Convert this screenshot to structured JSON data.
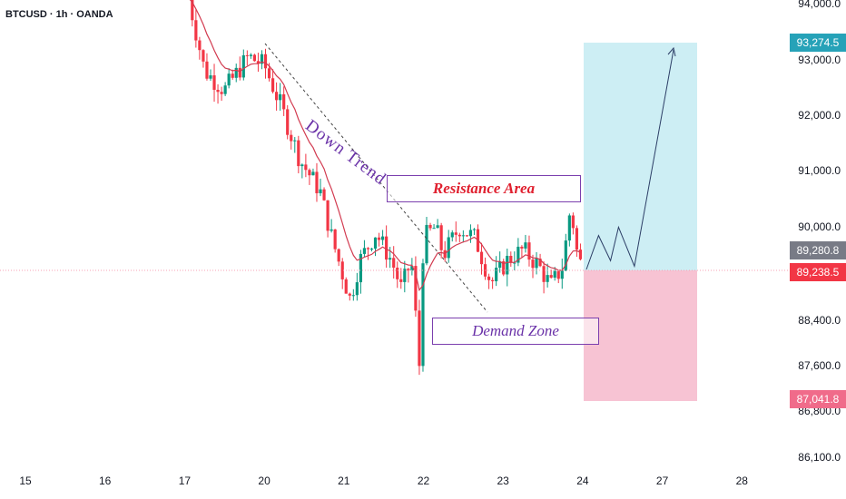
{
  "header": {
    "symbol": "BTCUSD · 1h · OANDA"
  },
  "y_axis": {
    "ticks": [
      {
        "label": "94,000.0",
        "value": 94000
      },
      {
        "label": "93,000.0",
        "value": 93000
      },
      {
        "label": "92,000.0",
        "value": 92000
      },
      {
        "label": "91,000.0",
        "value": 91000
      },
      {
        "label": "90,000.0",
        "value": 90000
      },
      {
        "label": "88,400.0",
        "value": 88400
      },
      {
        "label": "87,600.0",
        "value": 87600
      },
      {
        "label": "86,800.0",
        "value": 86800
      },
      {
        "label": "86,100.0",
        "value": 86100
      }
    ]
  },
  "x_axis": {
    "ticks": [
      {
        "label": "15",
        "t": 0
      },
      {
        "label": "16",
        "t": 1
      },
      {
        "label": "17",
        "t": 2
      },
      {
        "label": "20",
        "t": 3
      },
      {
        "label": "21",
        "t": 4
      },
      {
        "label": "22",
        "t": 5
      },
      {
        "label": "23",
        "t": 6
      },
      {
        "label": "24",
        "t": 7
      },
      {
        "label": "27",
        "t": 8
      },
      {
        "label": "28",
        "t": 9
      }
    ]
  },
  "price_badges": {
    "target": {
      "label": "93,274.5",
      "value": 93274.5,
      "color": "#26a2b8"
    },
    "entry": {
      "label": "89,280.8",
      "value": 89280.8,
      "color": "#787b86"
    },
    "last": {
      "label": "89,238.5",
      "value": 89238.5,
      "color": "#f23645"
    },
    "stop": {
      "label": "87,041.8",
      "value": 87041.8,
      "color": "#f06b8a"
    }
  },
  "annotations": {
    "down_trend": "Down Trend",
    "resistance": "Resistance Area",
    "demand": "Demand Zone"
  },
  "colors": {
    "bull": "#089981",
    "bear": "#f23645",
    "ma": "#d23b50",
    "profit_zone": "#cdeef4",
    "loss_zone": "#f7c3d3",
    "purple": "#7b3fae"
  },
  "chart_data": {
    "type": "candlestick",
    "symbol": "BTCUSD",
    "interval": "1h",
    "ylim": [
      85900,
      94150
    ],
    "moving_average": "red line",
    "x_unit": "trading-day index (0 = 15, 7 = 24)",
    "anchors": [
      {
        "t": 2.05,
        "p": 94100
      },
      {
        "t": 2.25,
        "p": 92800
      },
      {
        "t": 2.5,
        "p": 92450
      },
      {
        "t": 2.8,
        "p": 93050
      },
      {
        "t": 3.0,
        "p": 92900
      },
      {
        "t": 3.2,
        "p": 92200
      },
      {
        "t": 3.45,
        "p": 91200
      },
      {
        "t": 3.7,
        "p": 90650
      },
      {
        "t": 3.85,
        "p": 89800
      },
      {
        "t": 4.08,
        "p": 88700
      },
      {
        "t": 4.2,
        "p": 89400
      },
      {
        "t": 4.4,
        "p": 89900
      },
      {
        "t": 4.6,
        "p": 89400
      },
      {
        "t": 4.72,
        "p": 88900
      },
      {
        "t": 4.85,
        "p": 89400
      },
      {
        "t": 4.95,
        "p": 87500
      },
      {
        "t": 5.0,
        "p": 89800
      },
      {
        "t": 5.15,
        "p": 90000
      },
      {
        "t": 5.25,
        "p": 89500
      },
      {
        "t": 5.45,
        "p": 90000
      },
      {
        "t": 5.65,
        "p": 89800
      },
      {
        "t": 5.85,
        "p": 89000
      },
      {
        "t": 6.05,
        "p": 89400
      },
      {
        "t": 6.25,
        "p": 89600
      },
      {
        "t": 6.45,
        "p": 89300
      },
      {
        "t": 6.6,
        "p": 88950
      },
      {
        "t": 6.75,
        "p": 89300
      },
      {
        "t": 6.85,
        "p": 90400
      },
      {
        "t": 6.92,
        "p": 89600
      },
      {
        "t": 7.0,
        "p": 89238
      }
    ],
    "support_line": 89280.8,
    "projection": [
      {
        "t": 7.0,
        "p": 89280
      },
      {
        "t": 7.2,
        "p": 89850
      },
      {
        "t": 7.35,
        "p": 89400
      },
      {
        "t": 7.45,
        "p": 90000
      },
      {
        "t": 7.65,
        "p": 89300
      },
      {
        "t": 8.15,
        "p": 93200
      }
    ]
  }
}
